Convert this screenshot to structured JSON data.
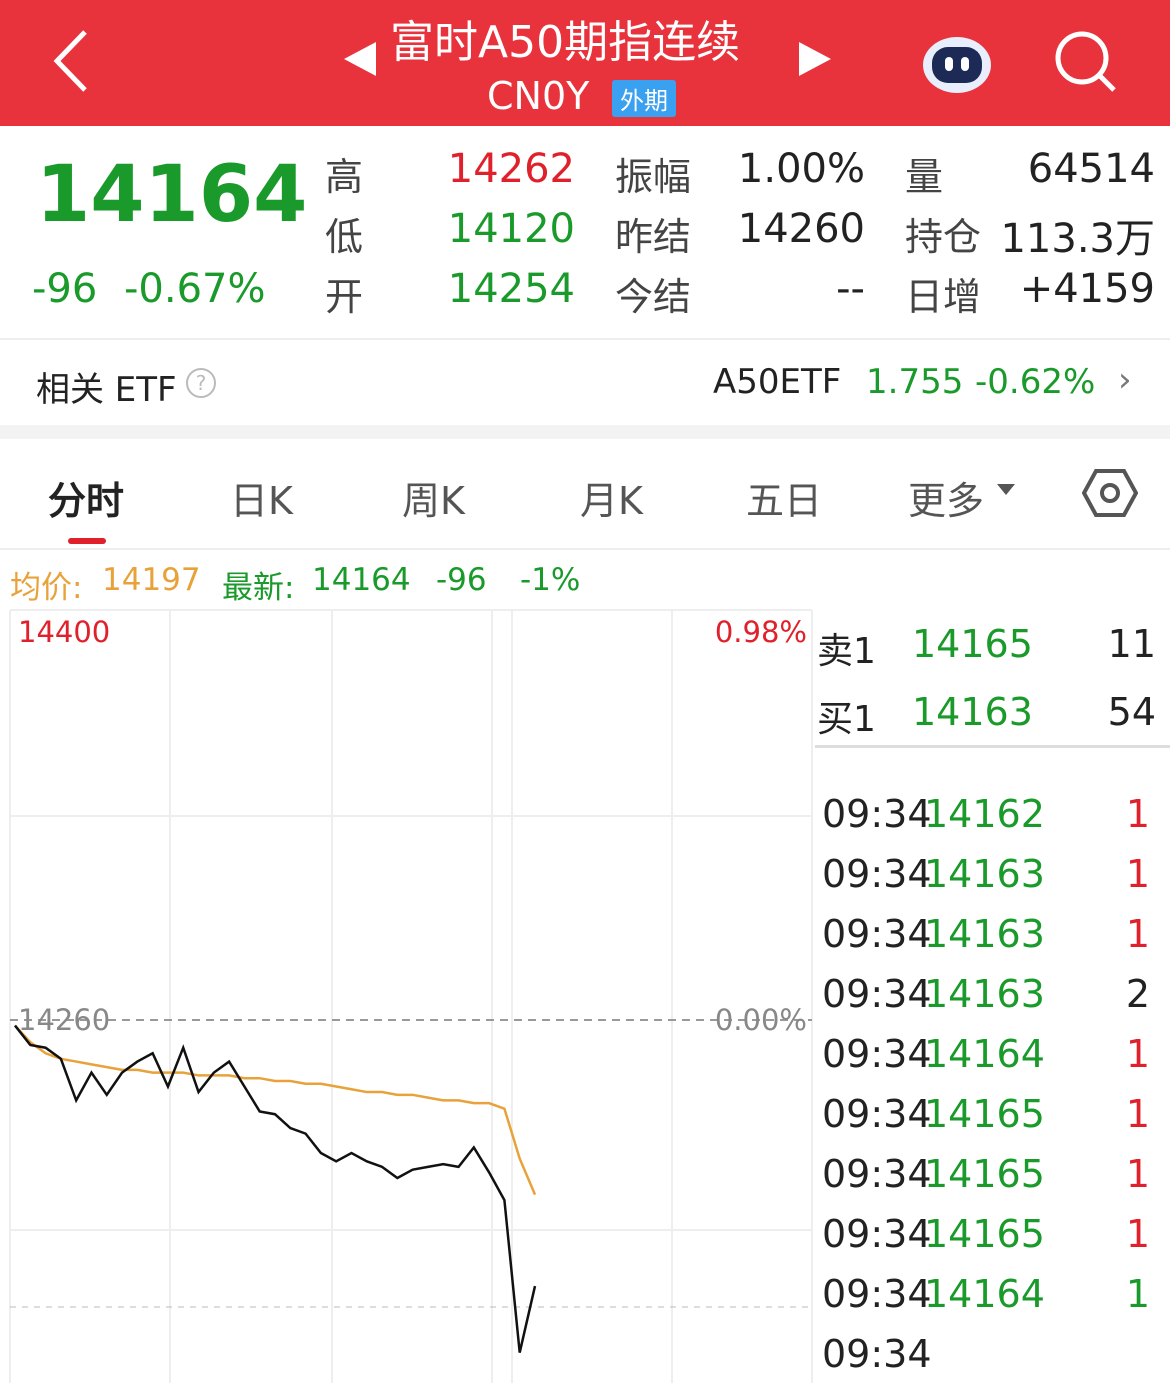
{
  "header": {
    "title": "富时A50期指连续",
    "code": "CN0Y",
    "tag": "外期"
  },
  "quote": {
    "last": "14164",
    "change": "-96",
    "change_pct": "-0.67%",
    "stats": [
      {
        "label": "高",
        "value": "14262"
      },
      {
        "label": "振幅",
        "value": "1.00%"
      },
      {
        "label": "量",
        "value": "64514"
      },
      {
        "label": "低",
        "value": "14120"
      },
      {
        "label": "昨结",
        "value": "14260"
      },
      {
        "label": "持仓",
        "value": "113.3万"
      },
      {
        "label": "开",
        "value": "14254"
      },
      {
        "label": "今结",
        "value": "--"
      },
      {
        "label": "日增",
        "value": "+4159"
      }
    ]
  },
  "etf": {
    "label": "相关 ETF",
    "name": "A50ETF",
    "price": "1.755",
    "change": "-0.62%"
  },
  "tabs": [
    "分时",
    "日K",
    "周K",
    "月K",
    "五日",
    "更多"
  ],
  "legend": {
    "avg_label": "均价:",
    "avg": "14197",
    "latest_label": "最新:",
    "latest": "14164",
    "change": "-96",
    "pct": "-1%"
  },
  "chart": {
    "yticks": [
      14400,
      14260
    ],
    "right_labels": [
      "0.98%",
      "0.00%"
    ],
    "price": [
      14258,
      14251,
      14250,
      14246,
      14231,
      14241,
      14233,
      14241,
      14245,
      14248,
      14236,
      14250,
      14234,
      14241,
      14245,
      14236,
      14227,
      14226,
      14221,
      14219,
      14212,
      14209,
      14212,
      14209,
      14207,
      14203,
      14206,
      14207,
      14208,
      14207,
      14214,
      14205,
      14195,
      14140,
      14164
    ],
    "avg": [
      14258,
      14252,
      14248,
      14246,
      14245,
      14244,
      14243,
      14242,
      14242,
      14241,
      14241,
      14241,
      14240,
      14240,
      14240,
      14239,
      14239,
      14238,
      14238,
      14237,
      14237,
      14236,
      14235,
      14234,
      14234,
      14233,
      14233,
      14232,
      14231,
      14231,
      14230,
      14230,
      14228,
      14210,
      14197
    ]
  },
  "orderbook": {
    "ask": {
      "label": "卖1",
      "price": "14165",
      "volume": "11"
    },
    "bid": {
      "label": "买1",
      "price": "14163",
      "volume": "54"
    }
  },
  "trades": [
    {
      "time": "09:34",
      "price": "14162",
      "volume": "1"
    },
    {
      "time": "09:34",
      "price": "14163",
      "volume": "1"
    },
    {
      "time": "09:34",
      "price": "14163",
      "volume": "1"
    },
    {
      "time": "09:34",
      "price": "14163",
      "volume": "2"
    },
    {
      "time": "09:34",
      "price": "14164",
      "volume": "1"
    },
    {
      "time": "09:34",
      "price": "14165",
      "volume": "1"
    },
    {
      "time": "09:34",
      "price": "14165",
      "volume": "1"
    },
    {
      "time": "09:34",
      "price": "14165",
      "volume": "1"
    },
    {
      "time": "09:34",
      "price": "14164",
      "volume": "1"
    },
    {
      "time": "09:34"
    }
  ]
}
